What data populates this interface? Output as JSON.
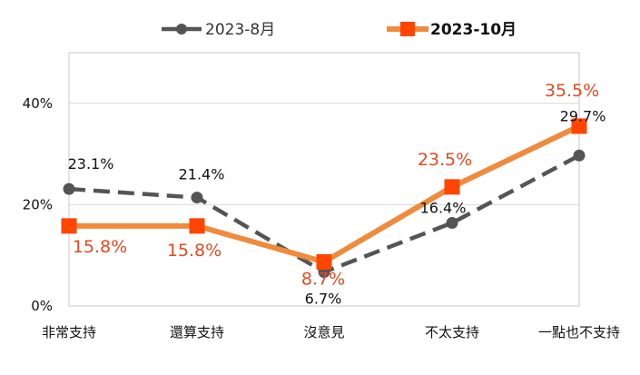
{
  "chart_data": {
    "type": "line",
    "categories": [
      "非常支持",
      "還算支持",
      "沒意見",
      "不太支持",
      "一點也不支持"
    ],
    "y_ticks": [
      "0%",
      "20%",
      "40%"
    ],
    "ylim": [
      0,
      50
    ],
    "grid": "horizontal",
    "legend_position": "top-center",
    "series": [
      {
        "name": "2023-8月",
        "values": [
          23.1,
          21.4,
          6.7,
          16.4,
          29.7
        ],
        "labels": [
          "23.1%",
          "21.4%",
          "6.7%",
          "16.4%",
          "29.7%"
        ],
        "color": "#555555",
        "style": "dashed",
        "marker": "circle"
      },
      {
        "name": "2023-10月",
        "values": [
          15.8,
          15.8,
          8.7,
          23.5,
          35.5
        ],
        "labels": [
          "15.8%",
          "15.8%",
          "8.7%",
          "23.5%",
          "35.5%"
        ],
        "color": "#F08A3C",
        "label_color": "#E8481F",
        "marker_color": "#FF4500",
        "style": "solid",
        "marker": "square"
      }
    ]
  }
}
